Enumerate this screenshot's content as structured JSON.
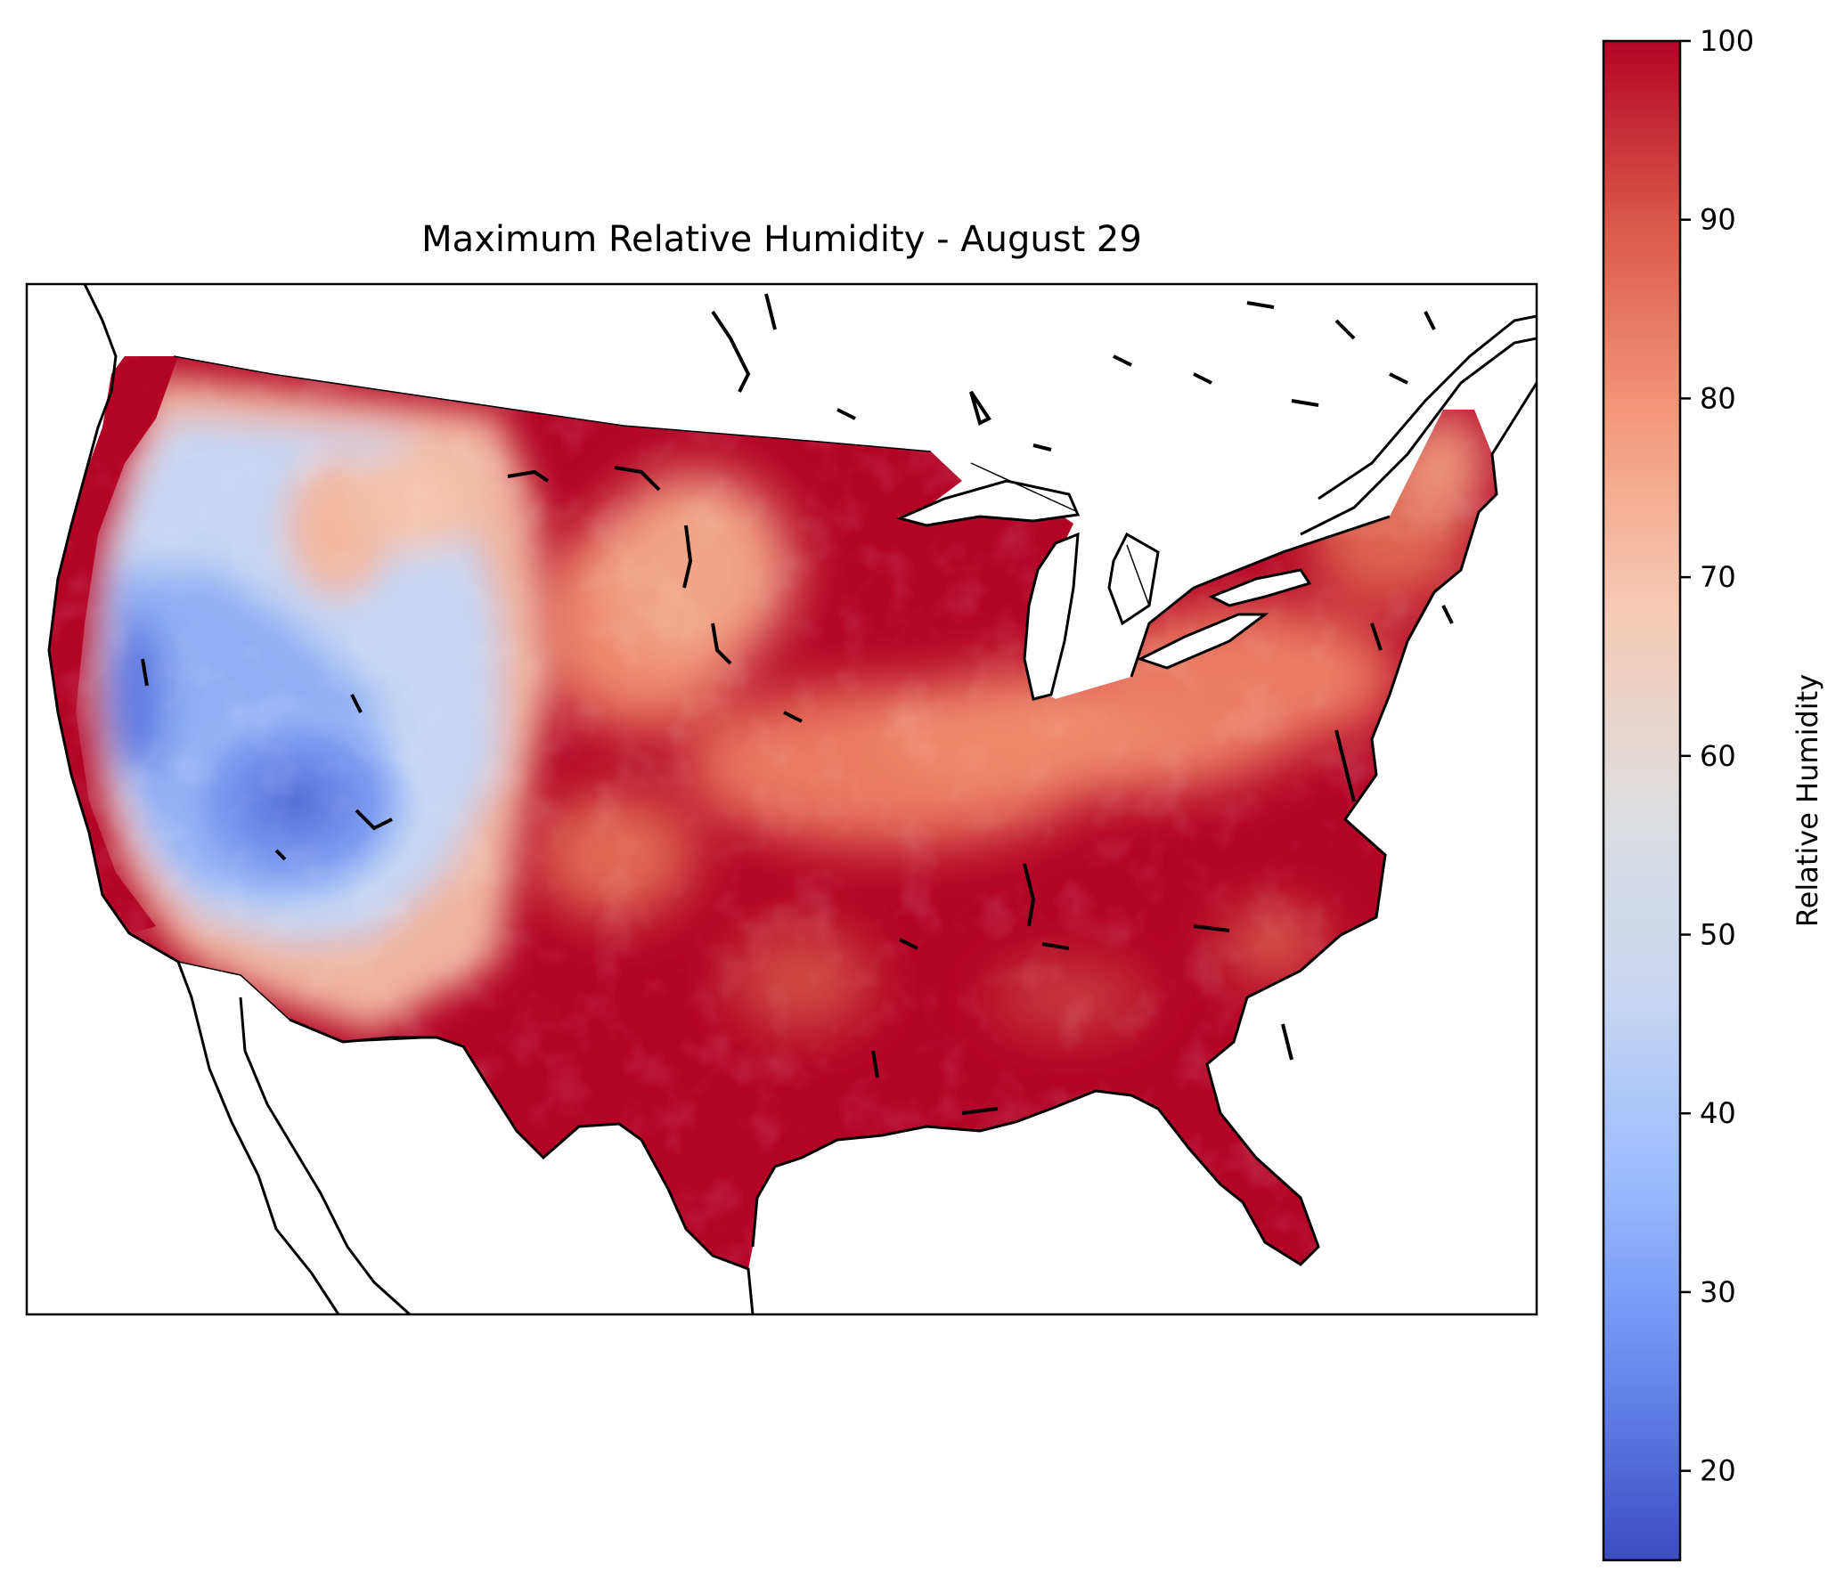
{
  "title": "Maximum Relative Humidity - August 29",
  "colorbar": {
    "label": "Relative Humidity",
    "min": 15,
    "max": 100,
    "ticks": [
      20,
      30,
      40,
      50,
      60,
      70,
      80,
      90,
      100
    ],
    "colormap": "coolwarm",
    "colormap_stops": [
      "#3b4cc0",
      "#688aef",
      "#9abbff",
      "#c9d7f0",
      "#dddddd",
      "#f6cab5",
      "#f49a7b",
      "#db5c4a",
      "#b40426"
    ]
  },
  "map": {
    "region": "Contiguous United States",
    "variable": "Maximum Relative Humidity",
    "units": "%",
    "pattern": {
      "east_of_plains": "90-100",
      "northern_plains_and_ohio_valley": "70-85",
      "intermountain_west": "25-55",
      "pacific_coast": "90-100",
      "southwest_mexico_border": "75-90"
    }
  }
}
